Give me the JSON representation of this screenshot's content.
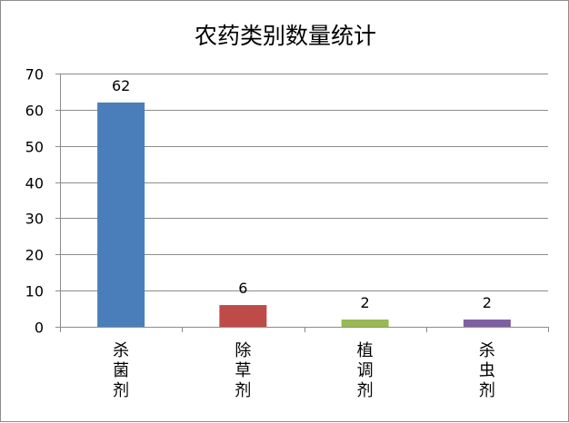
{
  "chart_data": {
    "type": "bar",
    "title": "农药类别数量统计",
    "categories": [
      "杀菌剂",
      "除草剂",
      "植调剂",
      "杀虫剂"
    ],
    "values": [
      62,
      6,
      2,
      2
    ],
    "colors": [
      "#4a7ebb",
      "#be4b48",
      "#98b954",
      "#7d60a0"
    ],
    "ylim": [
      0,
      70
    ],
    "yticks": [
      0,
      10,
      20,
      30,
      40,
      50,
      60,
      70
    ],
    "grid": true,
    "data_labels": true,
    "legend": "none"
  }
}
